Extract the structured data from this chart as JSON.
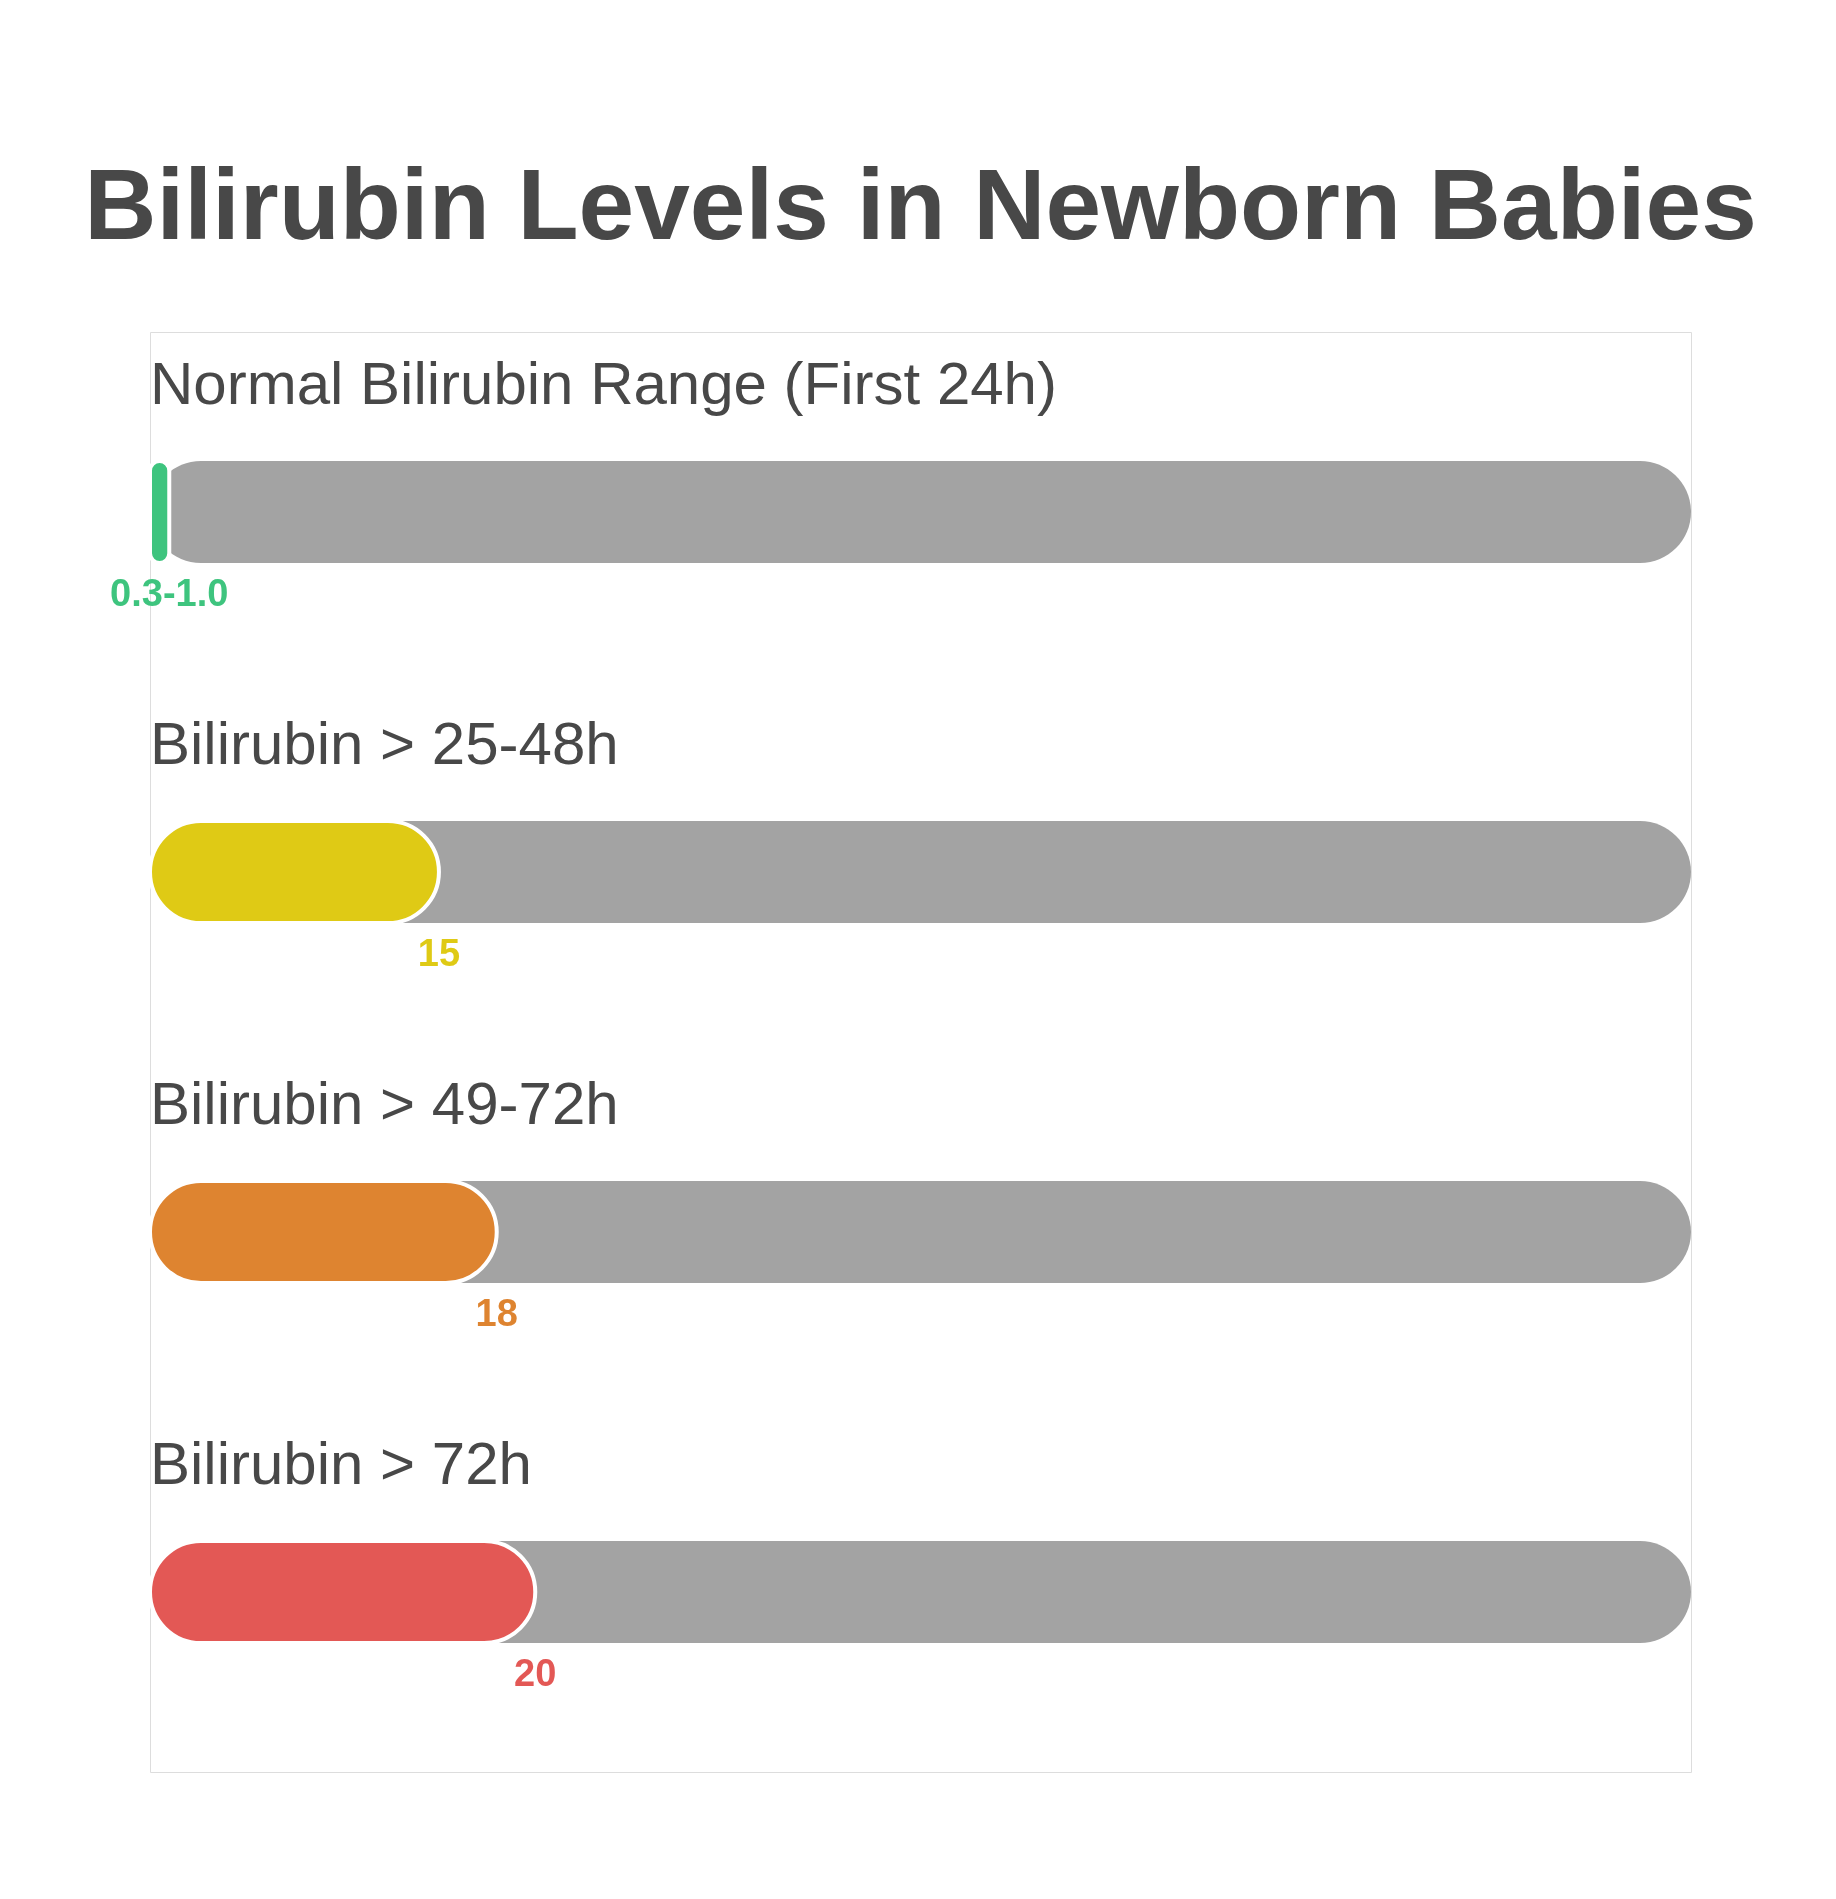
{
  "chart_data": {
    "type": "bar",
    "orientation": "horizontal",
    "title": "Bilirubin Levels in Newborn Babies",
    "categories": [
      "Normal Bilirubin Range (First 24h)",
      "Bilirubin > 25-48h",
      "Bilirubin > 49-72h",
      "Bilirubin > 72h"
    ],
    "values": [
      1.0,
      15,
      18,
      20
    ],
    "colors": [
      "#3ec47e",
      "#dfca15",
      "#de8430",
      "#e35855"
    ],
    "value_labels": [
      "0.3-1.0",
      "15",
      "18",
      "20"
    ],
    "xlim": [
      0,
      80
    ],
    "tick_labels": "y"
  }
}
